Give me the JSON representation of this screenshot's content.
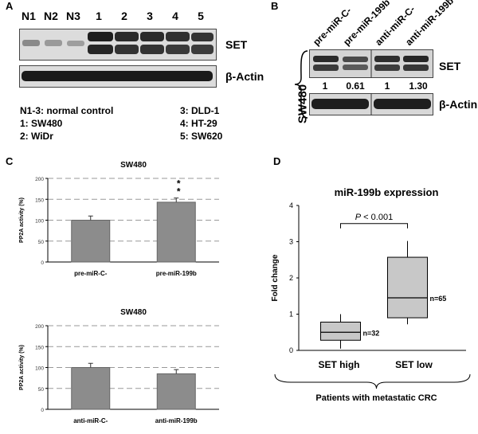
{
  "panels": {
    "A": {
      "label": "A",
      "lanes": [
        "N1",
        "N2",
        "N3",
        "1",
        "2",
        "3",
        "4",
        "5"
      ],
      "blot_labels": [
        "SET",
        "β-Actin"
      ],
      "legend": {
        "left": [
          "N1-3: normal control",
          "1: SW480",
          "2: WiDr"
        ],
        "right": [
          "3: DLD-1",
          "4: HT-29",
          "5: SW620"
        ]
      }
    },
    "B": {
      "label": "B",
      "cell_line": "SW480",
      "lanes": [
        "pre-miR-C-",
        "pre-miR-199b",
        "anti-miR-C-",
        "anti-miR-199b"
      ],
      "ratios": [
        "1",
        "0.61",
        "1",
        "1.30"
      ],
      "blot_labels": [
        "SET",
        "β-Actin"
      ]
    },
    "C": {
      "label": "C"
    },
    "D": {
      "label": "D"
    }
  },
  "chart_data": [
    {
      "type": "bar",
      "title": "SW480",
      "ylabel": "PP2A activity (%)",
      "categories": [
        "pre-miR-C-",
        "pre-miR-199b"
      ],
      "values": [
        100,
        143
      ],
      "errors": [
        10,
        10
      ],
      "annotations": [
        "",
        "*\n*"
      ],
      "ylim": [
        0,
        200
      ],
      "yticks": [
        0,
        50,
        100,
        150,
        200
      ]
    },
    {
      "type": "bar",
      "title": "SW480",
      "ylabel": "PP2A activity (%)",
      "categories": [
        "anti-miR-C-",
        "anti-miR-199b"
      ],
      "values": [
        100,
        85
      ],
      "errors": [
        10,
        10
      ],
      "ylim": [
        0,
        200
      ],
      "yticks": [
        0,
        50,
        100,
        150,
        200
      ]
    },
    {
      "type": "box",
      "title": "miR-199b expression",
      "ylabel": "Fold change",
      "ylim": [
        0,
        4
      ],
      "yticks": [
        0,
        1,
        2,
        3,
        4
      ],
      "categories": [
        "SET high",
        "SET low"
      ],
      "boxes": [
        {
          "name": "SET high",
          "whisker_low": 0.05,
          "q1": 0.28,
          "median": 0.5,
          "q3": 0.78,
          "whisker_high": 1.0,
          "n_label": "n=32"
        },
        {
          "name": "SET low",
          "whisker_low": 0.72,
          "q1": 0.9,
          "median": 1.45,
          "q3": 2.57,
          "whisker_high": 3.02,
          "n_label": "n=65"
        }
      ],
      "significance": "P < 0.001",
      "group_label": "Patients with metastatic CRC"
    }
  ]
}
